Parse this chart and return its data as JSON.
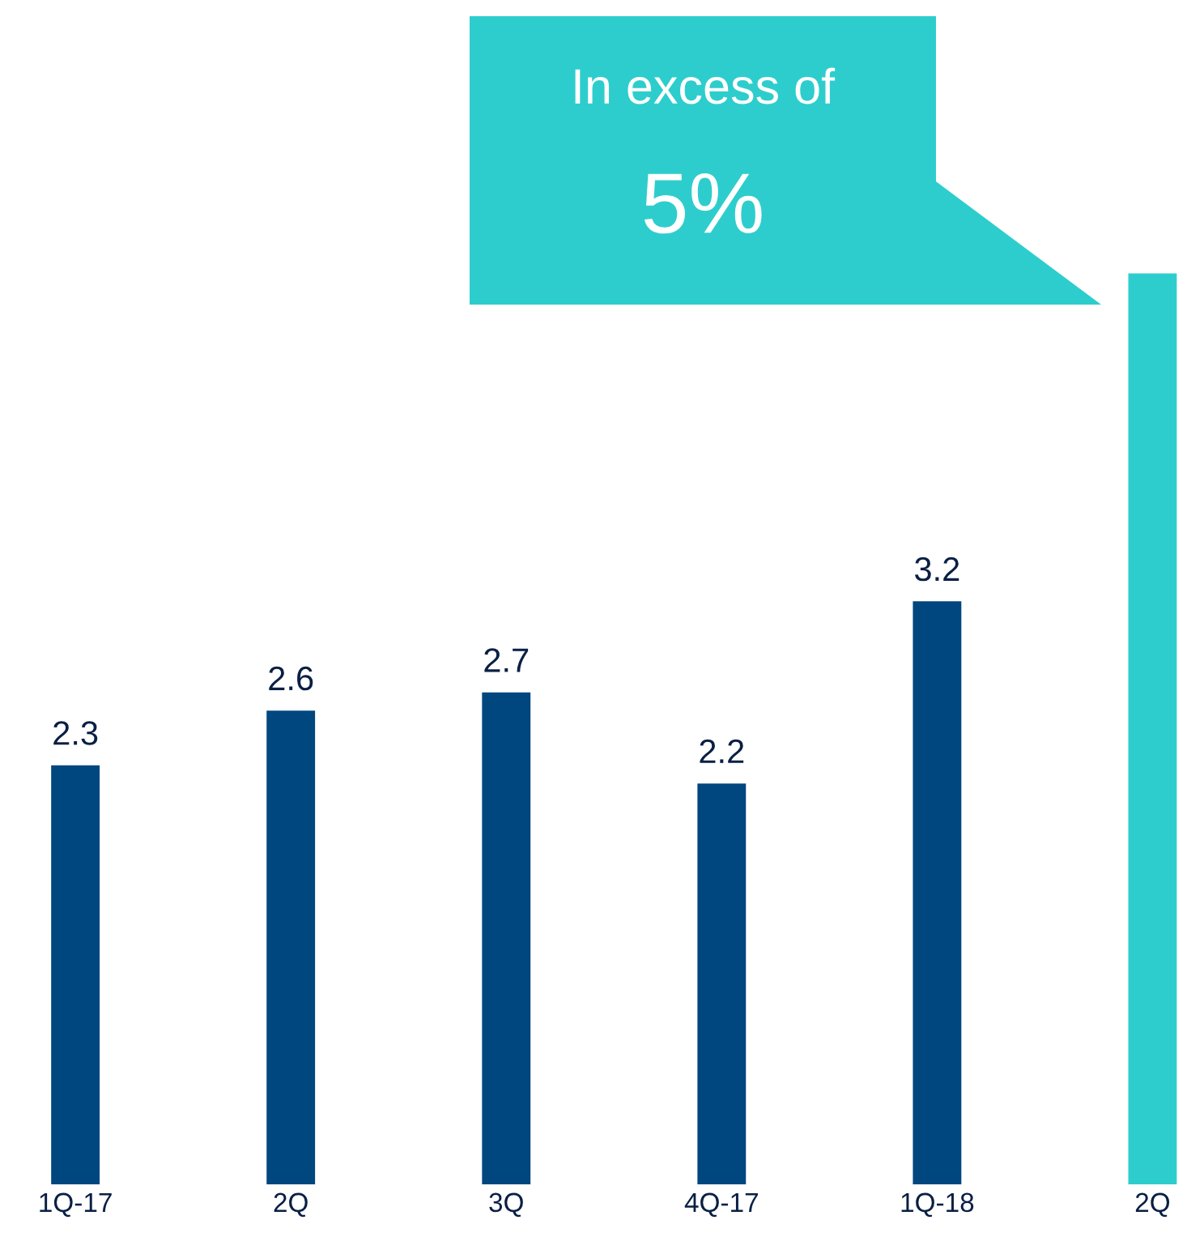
{
  "chart_data": {
    "type": "bar",
    "categories": [
      "1Q-17",
      "2Q",
      "3Q",
      "4Q-17",
      "1Q-18",
      "2Q"
    ],
    "values": [
      2.3,
      2.6,
      2.7,
      2.2,
      3.2,
      5.0
    ],
    "colors": [
      "#00467f",
      "#00467f",
      "#00467f",
      "#00467f",
      "#00467f",
      "#2ecdcd"
    ],
    "value_labels": [
      "2.3",
      "2.6",
      "2.7",
      "2.2",
      "3.2",
      null
    ],
    "tick_labels": "x",
    "grid": false,
    "legend": false,
    "annotations": [
      "In excess of",
      "5%"
    ]
  }
}
